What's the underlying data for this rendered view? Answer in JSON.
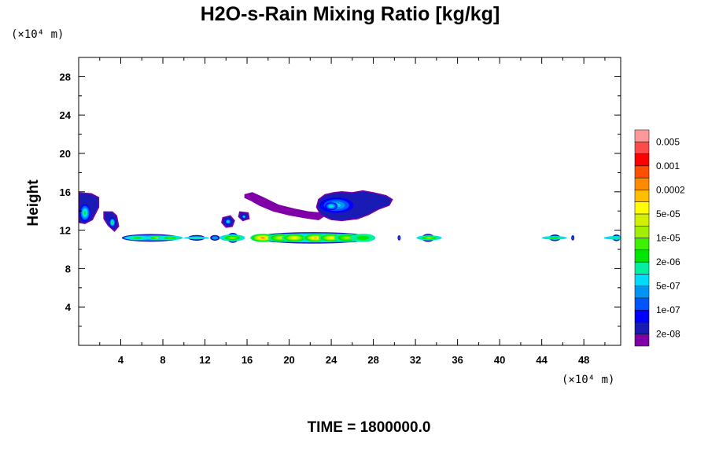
{
  "chart_data": {
    "type": "heatmap",
    "title": "H2O-s-Rain Mixing Ratio [kg/kg]",
    "xlabel": "",
    "ylabel": "Height",
    "x_unit_label": "(×10⁴ m)",
    "y_unit_label": "(×10⁴ m)",
    "footer": "TIME = 1800000.0",
    "xlim": [
      0,
      51.5
    ],
    "ylim": [
      0,
      30
    ],
    "xticks": [
      "4",
      "8",
      "12",
      "16",
      "20",
      "24",
      "28",
      "32",
      "36",
      "40",
      "44",
      "48"
    ],
    "yticks": [
      "4",
      "8",
      "12",
      "16",
      "20",
      "24",
      "28"
    ],
    "colorbar": {
      "colors": [
        "#7f00a7",
        "#1a1ab4",
        "#0000ff",
        "#0055ff",
        "#0095f5",
        "#00dcfa",
        "#00f0a0",
        "#00e600",
        "#3cf000",
        "#a0f000",
        "#d2f000",
        "#ffff00",
        "#ffbe00",
        "#ff8c00",
        "#ff5000",
        "#ff0000",
        "#ff4a4a",
        "#ff9999"
      ],
      "labels": [
        "2e-08",
        "1e-07",
        "5e-07",
        "2e-06",
        "1e-05",
        "5e-05",
        "0.0002",
        "0.001",
        "0.005"
      ]
    },
    "regions": [
      {
        "name": "upper-cloud",
        "x": [
          22.8,
          22.6,
          23.0,
          24.0,
          25.0,
          26.5,
          27.5,
          28.5,
          29.5,
          29.8,
          29.2,
          28.0,
          27.0,
          26.0,
          25.0,
          24.2,
          23.4,
          22.8
        ],
        "y": [
          15.2,
          14.4,
          13.6,
          13.1,
          13.0,
          13.2,
          13.6,
          14.2,
          14.6,
          15.2,
          15.6,
          15.9,
          16.1,
          15.9,
          16.0,
          15.9,
          15.7,
          15.2
        ],
        "level": 1,
        "core": [
          {
            "x": 24.5,
            "y": 14.6,
            "rx": 1.6,
            "ry": 0.8,
            "level": 5
          },
          {
            "x": 24.0,
            "y": 14.5,
            "rx": 0.6,
            "ry": 0.4,
            "level": 6
          }
        ]
      },
      {
        "name": "upper-streak",
        "x": [
          15.8,
          16.5,
          17.5,
          19.0,
          20.5,
          21.8,
          22.8,
          23.2,
          22.8,
          21.5,
          20.0,
          18.5,
          17.2,
          16.4,
          15.8
        ],
        "y": [
          15.7,
          15.9,
          15.4,
          14.6,
          14.2,
          13.9,
          13.8,
          13.4,
          13.1,
          13.3,
          13.6,
          14.0,
          14.6,
          15.1,
          15.4
        ],
        "level": 0
      },
      {
        "name": "left-edge-cell",
        "x": [
          0.0,
          1.2,
          1.9,
          1.9,
          1.3,
          0.6,
          0.0
        ],
        "y": [
          15.9,
          15.8,
          15.4,
          14.4,
          13.1,
          12.7,
          12.8
        ],
        "level": 1,
        "core": [
          {
            "x": 0.6,
            "y": 13.8,
            "rx": 0.5,
            "ry": 0.9,
            "level": 7
          }
        ]
      },
      {
        "name": "left-cell-2",
        "x": [
          2.4,
          3.2,
          3.6,
          3.8,
          3.4,
          2.8,
          2.4
        ],
        "y": [
          13.9,
          13.9,
          13.5,
          12.4,
          11.9,
          12.5,
          13.2
        ],
        "level": 1,
        "core": [
          {
            "x": 3.2,
            "y": 12.8,
            "rx": 0.3,
            "ry": 0.5,
            "level": 7
          }
        ]
      },
      {
        "name": "mid-cell-14",
        "x": [
          13.7,
          14.4,
          14.8,
          14.6,
          14.0,
          13.6
        ],
        "y": [
          13.3,
          13.5,
          13.0,
          12.4,
          12.3,
          12.8
        ],
        "level": 1,
        "core": [
          {
            "x": 14.2,
            "y": 12.9,
            "rx": 0.3,
            "ry": 0.3,
            "level": 6
          }
        ]
      },
      {
        "name": "mid-cell-16",
        "x": [
          15.3,
          16.1,
          16.2,
          15.6,
          15.2
        ],
        "y": [
          13.9,
          13.8,
          13.2,
          13.0,
          13.4
        ],
        "level": 1,
        "core": [
          {
            "x": 15.7,
            "y": 13.4,
            "rx": 0.2,
            "ry": 0.2,
            "level": 6
          }
        ]
      }
    ],
    "band": {
      "name": "low-band",
      "y": 11.2,
      "segments": [
        {
          "x0": 4.1,
          "x1": 9.6,
          "h": 0.55,
          "level": 2,
          "cores": [
            {
              "x": 5.6,
              "level": 7
            },
            {
              "x": 7.6,
              "level": 10
            },
            {
              "x": 8.7,
              "level": 8
            }
          ]
        },
        {
          "x0": 10.4,
          "x1": 12.0,
          "h": 0.35,
          "level": 2,
          "cores": [
            {
              "x": 11.2,
              "level": 6
            }
          ]
        },
        {
          "x0": 12.5,
          "x1": 13.4,
          "h": 0.35,
          "level": 2,
          "cores": []
        },
        {
          "x0": 14.1,
          "x1": 15.2,
          "h": 0.8,
          "level": 2,
          "cores": [
            {
              "x": 14.6,
              "level": 9
            }
          ]
        },
        {
          "x0": 16.6,
          "x1": 28.0,
          "h": 0.95,
          "level": 3,
          "cores": [
            {
              "x": 17.5,
              "level": 13
            },
            {
              "x": 19.2,
              "level": 10
            },
            {
              "x": 20.5,
              "level": 11
            },
            {
              "x": 22.5,
              "level": 12
            },
            {
              "x": 24.0,
              "level": 11
            },
            {
              "x": 25.5,
              "level": 9
            },
            {
              "x": 27.0,
              "level": 7
            }
          ]
        },
        {
          "x0": 32.6,
          "x1": 33.8,
          "h": 0.6,
          "level": 2,
          "cores": [
            {
              "x": 33.3,
              "level": 9
            }
          ]
        },
        {
          "x0": 30.3,
          "x1": 30.6,
          "h": 0.3,
          "level": 1,
          "cores": []
        },
        {
          "x0": 44.7,
          "x1": 45.8,
          "h": 0.45,
          "level": 2,
          "cores": [
            {
              "x": 45.2,
              "level": 7
            }
          ]
        },
        {
          "x0": 46.8,
          "x1": 47.1,
          "h": 0.3,
          "level": 1,
          "cores": []
        },
        {
          "x0": 50.7,
          "x1": 51.5,
          "h": 0.45,
          "level": 2,
          "cores": [
            {
              "x": 51.1,
              "level": 6
            }
          ]
        }
      ]
    }
  }
}
